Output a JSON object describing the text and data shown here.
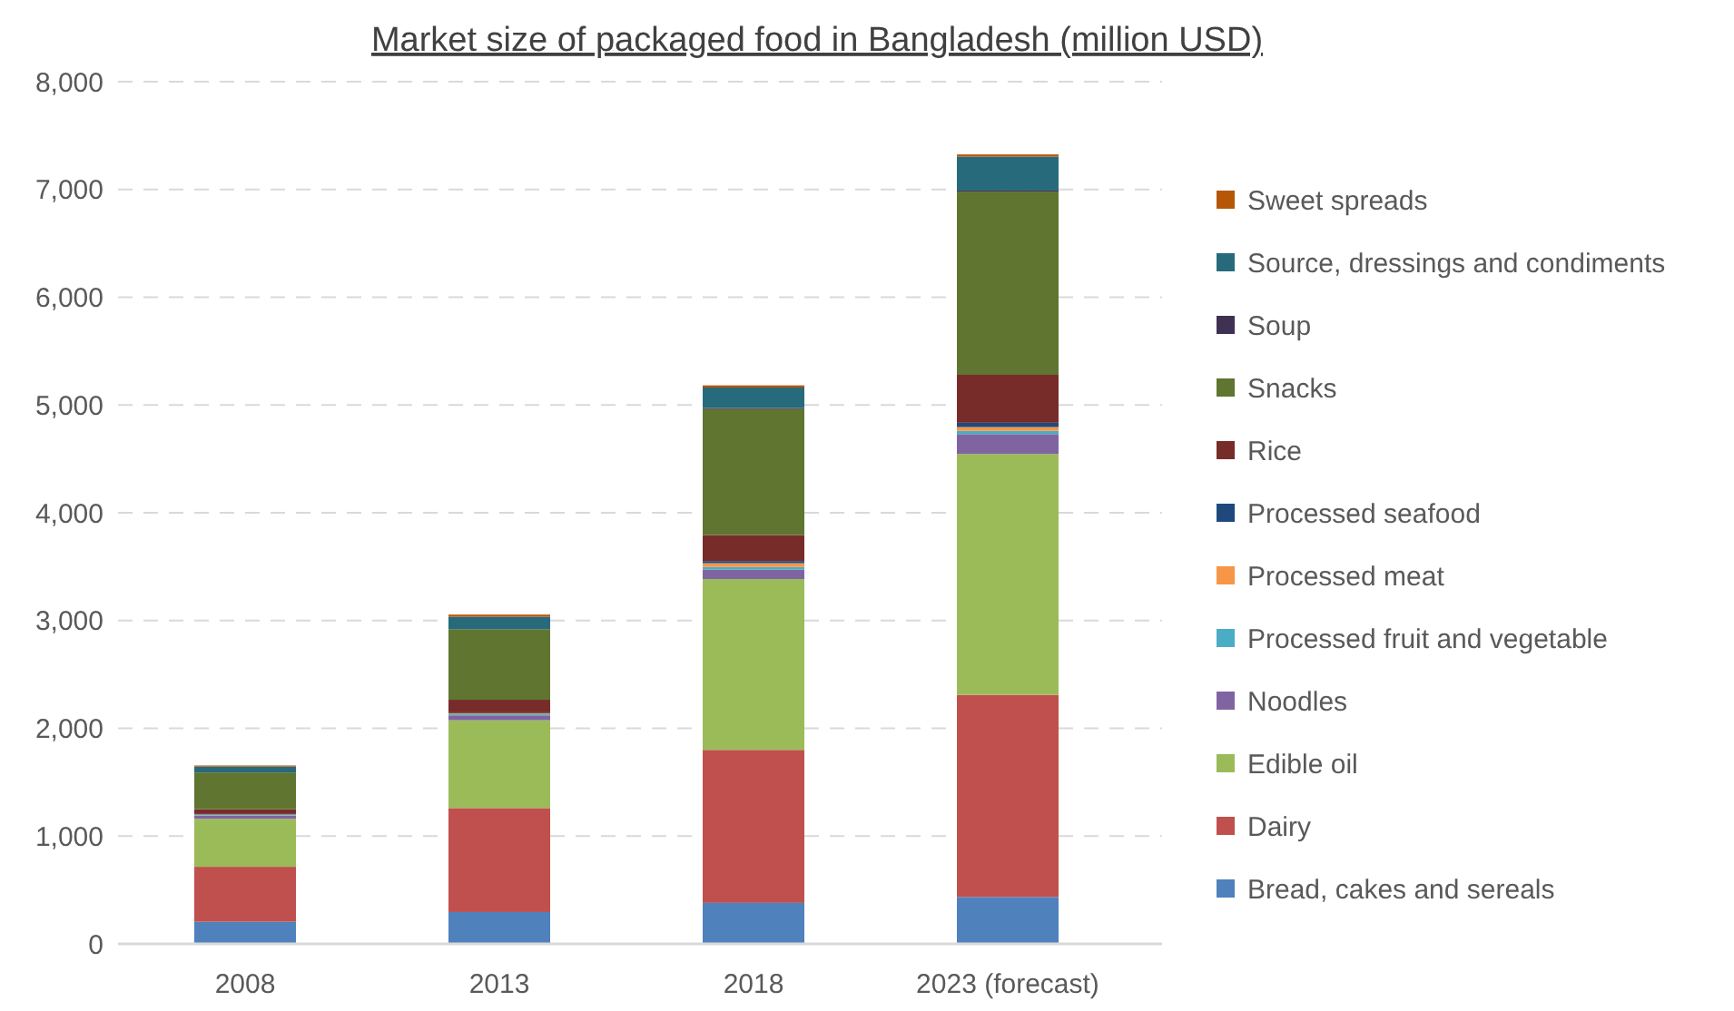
{
  "chart_data": {
    "type": "bar",
    "stacked": true,
    "title": "Market size of packaged food in Bangladesh (million USD)",
    "categories": [
      "2008",
      "2013",
      "2018",
      "2023 (forecast)"
    ],
    "series": [
      {
        "name": "Bread, cakes and sereals",
        "color": "#4f81bd",
        "values": [
          205,
          295,
          380,
          435
        ]
      },
      {
        "name": "Dairy",
        "color": "#c0504d",
        "values": [
          510,
          965,
          1420,
          1875
        ]
      },
      {
        "name": "Edible oil",
        "color": "#9bbb59",
        "values": [
          445,
          815,
          1585,
          2235
        ]
      },
      {
        "name": "Noodles",
        "color": "#8064a2",
        "values": [
          30,
          45,
          87,
          185
        ]
      },
      {
        "name": "Processed fruit and vegetable",
        "color": "#4bacc6",
        "values": [
          5,
          10,
          25,
          30
        ]
      },
      {
        "name": "Processed meat",
        "color": "#f79646",
        "values": [
          5,
          10,
          35,
          35
        ]
      },
      {
        "name": "Processed seafood",
        "color": "#1f497d",
        "values": [
          5,
          8,
          20,
          40
        ]
      },
      {
        "name": "Rice",
        "color": "#772c2a",
        "values": [
          45,
          117,
          240,
          445
        ]
      },
      {
        "name": "Snacks",
        "color": "#5f7530",
        "values": [
          340,
          655,
          1170,
          1700
        ]
      },
      {
        "name": "Soup",
        "color": "#3f3151",
        "values": [
          null,
          null,
          10,
          10
        ]
      },
      {
        "name": "Source, dressings and condiments",
        "color": "#276a7c",
        "values": [
          55,
          115,
          190,
          315
        ]
      },
      {
        "name": "Sweet spreads",
        "color": "#b65708",
        "values": [
          10,
          20,
          20,
          20
        ]
      }
    ],
    "ylim": [
      0,
      8000
    ],
    "yticks": [
      {
        "value": 0,
        "label": "0"
      },
      {
        "value": 1000,
        "label": "1,000"
      },
      {
        "value": 2000,
        "label": "2,000"
      },
      {
        "value": 3000,
        "label": "3,000"
      },
      {
        "value": 4000,
        "label": "4,000"
      },
      {
        "value": 5000,
        "label": "5,000"
      },
      {
        "value": 6000,
        "label": "6,000"
      },
      {
        "value": 7000,
        "label": "7,000"
      },
      {
        "value": 8000,
        "label": "8,000"
      }
    ],
    "grid": "y",
    "legend": "right"
  }
}
